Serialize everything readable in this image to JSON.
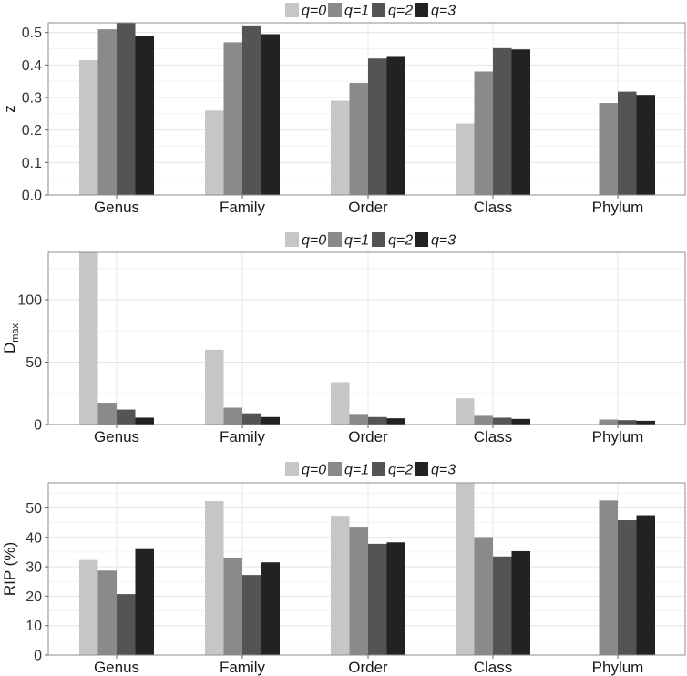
{
  "chart_data": [
    {
      "type": "bar",
      "title": "",
      "xlabel": "",
      "ylabel": "z",
      "ylim": [
        0,
        0.53
      ],
      "yticks": [
        0.0,
        0.1,
        0.2,
        0.3,
        0.4,
        0.5
      ],
      "ytick_labels": [
        "0.0",
        "0.1",
        "0.2",
        "0.3",
        "0.4",
        "0.5"
      ],
      "legend": "top",
      "categories": [
        "Genus",
        "Family",
        "Order",
        "Class",
        "Phylum"
      ],
      "series": [
        {
          "name": "q=0",
          "color": "#c6c6c6",
          "values": [
            0.415,
            0.26,
            0.29,
            0.22,
            null
          ]
        },
        {
          "name": "q=1",
          "color": "#8a8a8a",
          "values": [
            0.51,
            0.47,
            0.345,
            0.38,
            0.283
          ]
        },
        {
          "name": "q=2",
          "color": "#545454",
          "values": [
            0.535,
            0.522,
            0.42,
            0.452,
            0.318
          ]
        },
        {
          "name": "q=3",
          "color": "#222222",
          "values": [
            0.49,
            0.495,
            0.425,
            0.448,
            0.308
          ]
        }
      ]
    },
    {
      "type": "bar",
      "title": "",
      "xlabel": "",
      "ylabel": "D",
      "ylabel_sub": "max",
      "ylim": [
        0,
        138
      ],
      "yticks": [
        0,
        50,
        100
      ],
      "ytick_labels": [
        "0",
        "50",
        "100"
      ],
      "legend": "top",
      "categories": [
        "Genus",
        "Family",
        "Order",
        "Class",
        "Phylum"
      ],
      "series": [
        {
          "name": "q=0",
          "color": "#c6c6c6",
          "values": [
            140,
            60,
            34,
            21,
            null
          ]
        },
        {
          "name": "q=1",
          "color": "#8a8a8a",
          "values": [
            17.5,
            13.5,
            8.5,
            7,
            4
          ]
        },
        {
          "name": "q=2",
          "color": "#545454",
          "values": [
            12,
            9,
            6,
            5.5,
            3.5
          ]
        },
        {
          "name": "q=3",
          "color": "#222222",
          "values": [
            5.5,
            6,
            5,
            4.5,
            3
          ]
        }
      ]
    },
    {
      "type": "bar",
      "title": "",
      "xlabel": "",
      "ylabel": "RIP (%)",
      "ylim": [
        0,
        58.5
      ],
      "yticks": [
        0,
        10,
        20,
        30,
        40,
        50
      ],
      "ytick_labels": [
        "0",
        "10",
        "20",
        "30",
        "40",
        "50"
      ],
      "legend": "top",
      "categories": [
        "Genus",
        "Family",
        "Order",
        "Class",
        "Phylum"
      ],
      "series": [
        {
          "name": "q=0",
          "color": "#c6c6c6",
          "values": [
            32.3,
            52.3,
            47.3,
            60,
            null
          ]
        },
        {
          "name": "q=1",
          "color": "#8a8a8a",
          "values": [
            28.7,
            33,
            43.3,
            40.1,
            52.5
          ]
        },
        {
          "name": "q=2",
          "color": "#545454",
          "values": [
            20.7,
            27.2,
            37.8,
            33.5,
            45.8
          ]
        },
        {
          "name": "q=3",
          "color": "#222222",
          "values": [
            36,
            31.5,
            38.3,
            35.3,
            47.5
          ]
        }
      ]
    }
  ]
}
